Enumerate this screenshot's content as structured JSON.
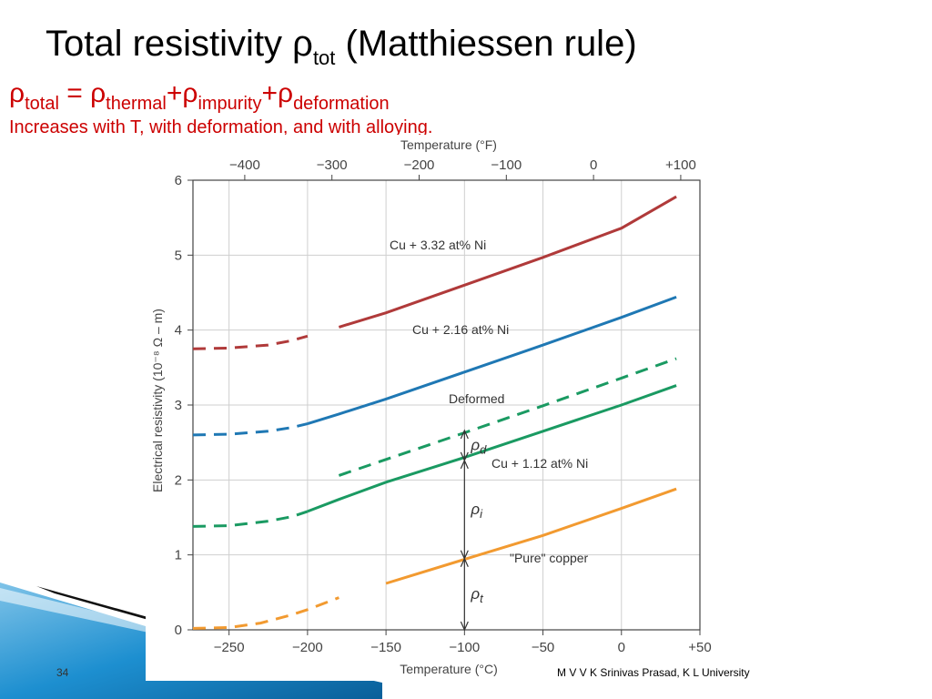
{
  "slide": {
    "title_main": "Total resistivity ",
    "title_rho": "ρ",
    "title_sub": "tot",
    "title_rest": " (Matthiessen rule)",
    "eq_rho1": "ρ",
    "eq_sub1": "total",
    "eq_mid1": " = ρ",
    "eq_sub2": "thermal",
    "eq_mid2": "+ρ",
    "eq_sub3": "impurity",
    "eq_mid3": "+ρ",
    "eq_sub4": "deformation",
    "note": "Increases with T, with deformation, and with alloying.",
    "slide_number": "34",
    "footer": "M V V K Srinivas Prasad, K L University"
  },
  "colors": {
    "red_text": "#cc0000",
    "cu332": "#b03a3a",
    "cu216": "#1f78b4",
    "cu112": "#1a9a62",
    "deformed": "#1a9a62",
    "pure": "#f29a30"
  },
  "chart_data": {
    "type": "line",
    "title": "",
    "xlabel": "Temperature (°C)",
    "x2label": "Temperature (°F)",
    "ylabel": "Electrical resistivity (10⁻⁸ Ω – m)",
    "xlim": [
      -273,
      50
    ],
    "ylim": [
      0,
      6
    ],
    "x_ticks": [
      -250,
      -200,
      -150,
      -100,
      -50,
      0,
      50
    ],
    "x_tick_labels": [
      "−250",
      "−200",
      "−150",
      "−100",
      "−50",
      "0",
      "+50"
    ],
    "x2_ticks": [
      -400,
      -300,
      -200,
      -100,
      0,
      100
    ],
    "x2_tick_labels": [
      "−400",
      "−300",
      "−200",
      "−100",
      "0",
      "+100"
    ],
    "y_ticks": [
      0,
      1,
      2,
      3,
      4,
      5,
      6
    ],
    "y_tick_labels": [
      "0",
      "1",
      "2",
      "3",
      "4",
      "5",
      "6"
    ],
    "grid": true,
    "series": [
      {
        "name": "Cu + 3.32 at% Ni",
        "dashed_until": -190,
        "x": [
          -273,
          -250,
          -225,
          -210,
          -200,
          -180,
          -150,
          -100,
          -50,
          0,
          35
        ],
        "y": [
          3.75,
          3.76,
          3.8,
          3.86,
          3.92,
          4.04,
          4.23,
          4.6,
          4.97,
          5.36,
          5.78
        ]
      },
      {
        "name": "Cu + 2.16 at% Ni",
        "dashed_until": -200,
        "x": [
          -273,
          -250,
          -225,
          -210,
          -200,
          -180,
          -150,
          -100,
          -50,
          0,
          35
        ],
        "y": [
          2.6,
          2.61,
          2.65,
          2.7,
          2.75,
          2.88,
          3.08,
          3.44,
          3.8,
          4.17,
          4.44
        ]
      },
      {
        "name": "Deformed",
        "dashed_until": 35,
        "x": [
          -180,
          -100,
          -50,
          0,
          35
        ],
        "y": [
          2.06,
          2.63,
          2.99,
          3.36,
          3.62
        ]
      },
      {
        "name": "Cu + 1.12 at% Ni",
        "dashed_until": -200,
        "x": [
          -273,
          -250,
          -225,
          -210,
          -200,
          -180,
          -150,
          -100,
          -50,
          0,
          35
        ],
        "y": [
          1.38,
          1.39,
          1.45,
          1.51,
          1.58,
          1.74,
          1.97,
          2.3,
          2.65,
          3.0,
          3.26
        ]
      },
      {
        "name": "\"Pure\" copper",
        "dashed_until": -165,
        "x": [
          -273,
          -250,
          -230,
          -210,
          -200,
          -180,
          -150,
          -100,
          -50,
          0,
          35
        ],
        "y": [
          0.02,
          0.03,
          0.09,
          0.2,
          0.27,
          0.43,
          0.62,
          0.94,
          1.26,
          1.62,
          1.88
        ]
      }
    ],
    "annotations": [
      {
        "text": "ρ",
        "sub": "d",
        "x": -100,
        "y_from": 2.26,
        "y_to": 2.66
      },
      {
        "text": "ρ",
        "sub": "i",
        "x": -100,
        "y_from": 0.95,
        "y_to": 2.26
      },
      {
        "text": "ρ",
        "sub": "t",
        "x": -100,
        "y_from": 0,
        "y_to": 0.95
      }
    ]
  }
}
